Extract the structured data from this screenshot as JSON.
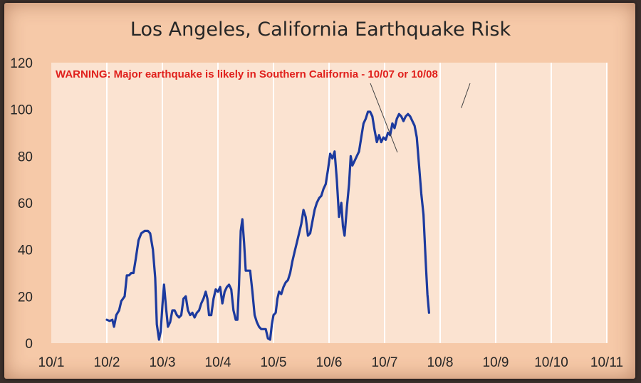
{
  "chart_data": {
    "type": "line",
    "title": "Los Angeles, California Earthquake Risk",
    "xlabel": "",
    "ylabel": "",
    "ylim": [
      0,
      120
    ],
    "xlim": [
      "10/1",
      "10/11"
    ],
    "yticks": [
      "0",
      "20",
      "40",
      "60",
      "80",
      "100",
      "120"
    ],
    "xticks": [
      "10/1",
      "10/2",
      "10/3",
      "10/4",
      "10/5",
      "10/6",
      "10/7",
      "10/8",
      "10/9",
      "10/10",
      "10/11"
    ],
    "grid": "vertical",
    "line_color": "#1c3a9e",
    "annotation": {
      "text": "WARNING: Major earthquake is likely in Southern California - 10/07 or 10/08",
      "color": "#e0201c",
      "pointers": [
        {
          "x": 7.23,
          "y": 81
        },
        {
          "x": 8.38,
          "y": 100
        }
      ]
    },
    "series": [
      {
        "values": [
          [
            2.0,
            10
          ],
          [
            2.05,
            9.5
          ],
          [
            2.1,
            10
          ],
          [
            2.13,
            7
          ],
          [
            2.17,
            12
          ],
          [
            2.22,
            14
          ],
          [
            2.26,
            18
          ],
          [
            2.32,
            20
          ],
          [
            2.36,
            29
          ],
          [
            2.4,
            29
          ],
          [
            2.44,
            30
          ],
          [
            2.48,
            30
          ],
          [
            2.52,
            36
          ],
          [
            2.57,
            44
          ],
          [
            2.62,
            47
          ],
          [
            2.68,
            48
          ],
          [
            2.74,
            48
          ],
          [
            2.78,
            47
          ],
          [
            2.83,
            40
          ],
          [
            2.87,
            28
          ],
          [
            2.9,
            8
          ],
          [
            2.94,
            1.5
          ],
          [
            2.97,
            5
          ],
          [
            3.0,
            16
          ],
          [
            3.03,
            25
          ],
          [
            3.07,
            14
          ],
          [
            3.1,
            7
          ],
          [
            3.14,
            9
          ],
          [
            3.18,
            14
          ],
          [
            3.22,
            14
          ],
          [
            3.26,
            12
          ],
          [
            3.3,
            11
          ],
          [
            3.34,
            12
          ],
          [
            3.38,
            19
          ],
          [
            3.42,
            20
          ],
          [
            3.46,
            14
          ],
          [
            3.5,
            12
          ],
          [
            3.54,
            13
          ],
          [
            3.58,
            11
          ],
          [
            3.62,
            13
          ],
          [
            3.66,
            14
          ],
          [
            3.7,
            17
          ],
          [
            3.74,
            19
          ],
          [
            3.78,
            22
          ],
          [
            3.81,
            19
          ],
          [
            3.84,
            12
          ],
          [
            3.88,
            12
          ],
          [
            3.92,
            19
          ],
          [
            3.96,
            23
          ],
          [
            4.0,
            22
          ],
          [
            4.04,
            24
          ],
          [
            4.08,
            17
          ],
          [
            4.12,
            22
          ],
          [
            4.16,
            24
          ],
          [
            4.2,
            25
          ],
          [
            4.24,
            23
          ],
          [
            4.28,
            14
          ],
          [
            4.32,
            10
          ],
          [
            4.35,
            10
          ],
          [
            4.38,
            25
          ],
          [
            4.41,
            48
          ],
          [
            4.44,
            53
          ],
          [
            4.47,
            43
          ],
          [
            4.5,
            31
          ],
          [
            4.54,
            31
          ],
          [
            4.58,
            31
          ],
          [
            4.62,
            22
          ],
          [
            4.66,
            12
          ],
          [
            4.7,
            9
          ],
          [
            4.74,
            7
          ],
          [
            4.78,
            6
          ],
          [
            4.82,
            6
          ],
          [
            4.86,
            6
          ],
          [
            4.9,
            2
          ],
          [
            4.94,
            1.5
          ],
          [
            4.97,
            8
          ],
          [
            5.0,
            12
          ],
          [
            5.04,
            13
          ],
          [
            5.07,
            19
          ],
          [
            5.1,
            22
          ],
          [
            5.14,
            21
          ],
          [
            5.18,
            24
          ],
          [
            5.22,
            26
          ],
          [
            5.26,
            27
          ],
          [
            5.3,
            30
          ],
          [
            5.34,
            35
          ],
          [
            5.38,
            39
          ],
          [
            5.42,
            43
          ],
          [
            5.46,
            47
          ],
          [
            5.5,
            51
          ],
          [
            5.54,
            57
          ],
          [
            5.58,
            54
          ],
          [
            5.62,
            46
          ],
          [
            5.66,
            47
          ],
          [
            5.7,
            52
          ],
          [
            5.74,
            57
          ],
          [
            5.78,
            60
          ],
          [
            5.82,
            62
          ],
          [
            5.86,
            63
          ],
          [
            5.9,
            66
          ],
          [
            5.94,
            68
          ],
          [
            5.98,
            74
          ],
          [
            6.02,
            81
          ],
          [
            6.06,
            79
          ],
          [
            6.1,
            82
          ],
          [
            6.14,
            70
          ],
          [
            6.18,
            54
          ],
          [
            6.22,
            60
          ],
          [
            6.25,
            50
          ],
          [
            6.28,
            46
          ],
          [
            6.32,
            58
          ],
          [
            6.36,
            68
          ],
          [
            6.39,
            80
          ],
          [
            6.42,
            76
          ],
          [
            6.46,
            78
          ],
          [
            6.5,
            80
          ],
          [
            6.54,
            82
          ],
          [
            6.58,
            88
          ],
          [
            6.62,
            94
          ],
          [
            6.66,
            96
          ],
          [
            6.7,
            99
          ],
          [
            6.74,
            99
          ],
          [
            6.78,
            97
          ],
          [
            6.82,
            91
          ],
          [
            6.86,
            86
          ],
          [
            6.9,
            89
          ],
          [
            6.94,
            86
          ],
          [
            6.98,
            88
          ],
          [
            7.02,
            87
          ],
          [
            7.06,
            90
          ],
          [
            7.1,
            89
          ],
          [
            7.14,
            94
          ],
          [
            7.18,
            92
          ],
          [
            7.22,
            96
          ],
          [
            7.26,
            98
          ],
          [
            7.3,
            97
          ],
          [
            7.34,
            95
          ],
          [
            7.38,
            97
          ],
          [
            7.42,
            98
          ],
          [
            7.46,
            97
          ],
          [
            7.5,
            95
          ],
          [
            7.54,
            93
          ],
          [
            7.58,
            88
          ],
          [
            7.62,
            76
          ],
          [
            7.66,
            64
          ],
          [
            7.7,
            55
          ],
          [
            7.74,
            35
          ],
          [
            7.77,
            21
          ],
          [
            7.8,
            13
          ]
        ]
      }
    ]
  }
}
